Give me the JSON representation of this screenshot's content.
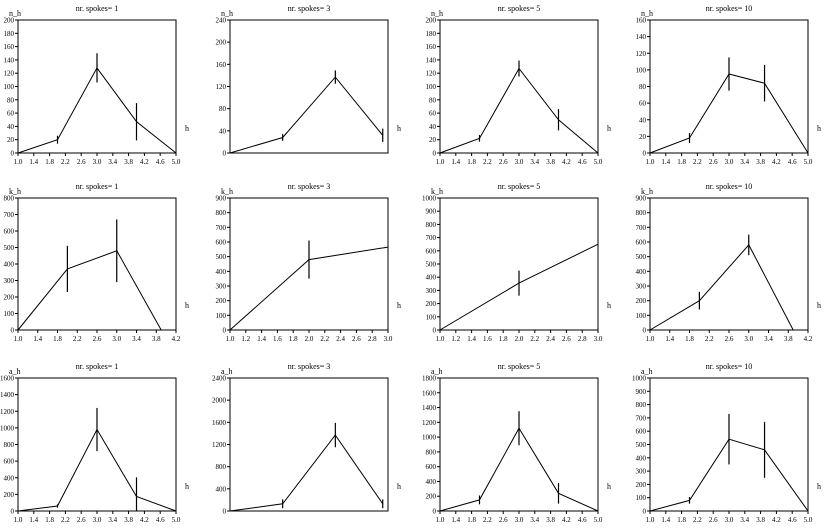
{
  "figure": {
    "background": "#ffffff",
    "line_color": "#000000"
  },
  "chart_data": [
    {
      "type": "line",
      "title": "nr. spokes= 1",
      "xlabel": "h",
      "ylabel": "n_h",
      "xlim": [
        1.0,
        5.0
      ],
      "ylim": [
        0,
        200
      ],
      "xticks": [
        "1.0",
        "1.4",
        "1.8",
        "2.2",
        "2.6",
        "3.0",
        "3.4",
        "3.8",
        "4.2",
        "4.6",
        "5.0"
      ],
      "yticks": [
        "0",
        "20",
        "40",
        "60",
        "80",
        "100",
        "120",
        "140",
        "160",
        "180",
        "200"
      ],
      "x": [
        1.0,
        2.0,
        3.0,
        4.0,
        5.0
      ],
      "y": [
        0,
        20,
        128,
        47,
        0
      ],
      "err": [
        0,
        6,
        22,
        28,
        0
      ]
    },
    {
      "type": "line",
      "title": "nr. spokes= 3",
      "xlabel": "h",
      "ylabel": "n_h",
      "xlim": [
        1.0,
        4.0
      ],
      "ylim": [
        0,
        240
      ],
      "xticks": [],
      "yticks": [
        "0",
        "40",
        "80",
        "120",
        "160",
        "200",
        "240"
      ],
      "x": [
        1.0,
        2.0,
        3.0,
        3.9
      ],
      "y": [
        0,
        28,
        137,
        32
      ],
      "err": [
        0,
        6,
        12,
        12
      ]
    },
    {
      "type": "line",
      "title": "nr. spokes= 5",
      "xlabel": "h",
      "ylabel": "n_h",
      "xlim": [
        1.0,
        5.0
      ],
      "ylim": [
        0,
        200
      ],
      "xticks": [
        "1.0",
        "1.4",
        "1.8",
        "2.2",
        "2.6",
        "3.0",
        "3.4",
        "3.8",
        "4.2",
        "4.6",
        "5.0"
      ],
      "yticks": [
        "0",
        "20",
        "40",
        "60",
        "80",
        "100",
        "120",
        "140",
        "160",
        "180",
        "200"
      ],
      "x": [
        1.0,
        2.0,
        3.0,
        4.0,
        5.0
      ],
      "y": [
        0,
        22,
        127,
        50,
        0
      ],
      "err": [
        0,
        5,
        12,
        16,
        0
      ]
    },
    {
      "type": "line",
      "title": "nr. spokes= 10",
      "xlabel": "h",
      "ylabel": "n_h",
      "xlim": [
        1.0,
        5.0
      ],
      "ylim": [
        0,
        160
      ],
      "xticks": [
        "1.0",
        "1.4",
        "1.8",
        "2.2",
        "2.6",
        "3.0",
        "3.4",
        "3.8",
        "4.2",
        "4.6",
        "5.0"
      ],
      "yticks": [
        "0",
        "20",
        "40",
        "60",
        "80",
        "100",
        "120",
        "140",
        "160"
      ],
      "x": [
        1.0,
        2.0,
        3.0,
        3.9,
        5.0
      ],
      "y": [
        0,
        18,
        95,
        84,
        0
      ],
      "err": [
        0,
        6,
        20,
        22,
        0
      ]
    },
    {
      "type": "line",
      "title": "nr. spokes= 1",
      "xlabel": "h",
      "ylabel": "k_h",
      "xlim": [
        1.0,
        4.2
      ],
      "ylim": [
        0,
        800
      ],
      "xticks": [
        "1.0",
        "1.4",
        "1.8",
        "2.2",
        "2.6",
        "3.0",
        "3.4",
        "3.8",
        "4.2"
      ],
      "yticks": [
        "0",
        "100",
        "200",
        "300",
        "400",
        "500",
        "600",
        "700",
        "800"
      ],
      "x": [
        1.0,
        2.0,
        3.0,
        3.9
      ],
      "y": [
        0,
        370,
        480,
        0
      ],
      "err": [
        0,
        140,
        190,
        0
      ]
    },
    {
      "type": "line",
      "title": "nr. spokes= 3",
      "xlabel": "h",
      "ylabel": "k_h",
      "xlim": [
        1.0,
        3.0
      ],
      "ylim": [
        0,
        900
      ],
      "xticks": [
        "1.0",
        "1.2",
        "1.4",
        "1.6",
        "1.8",
        "2.0",
        "2.2",
        "2.4",
        "2.6",
        "2.8",
        "3.0"
      ],
      "yticks": [
        "0",
        "100",
        "200",
        "300",
        "400",
        "500",
        "600",
        "700",
        "800",
        "900"
      ],
      "x": [
        1.0,
        2.0,
        3.0
      ],
      "y": [
        0,
        480,
        565
      ],
      "err": [
        0,
        130,
        0
      ]
    },
    {
      "type": "line",
      "title": "nr. spokes= 5",
      "xlabel": "h",
      "ylabel": "k_h",
      "xlim": [
        1.0,
        3.0
      ],
      "ylim": [
        0,
        1000
      ],
      "xticks": [
        "1.0",
        "1.2",
        "1.4",
        "1.6",
        "1.8",
        "2.0",
        "2.2",
        "2.4",
        "2.6",
        "2.8",
        "3.0"
      ],
      "yticks": [
        "0",
        "100",
        "200",
        "300",
        "400",
        "500",
        "600",
        "700",
        "800",
        "900",
        "1000"
      ],
      "x": [
        1.0,
        2.0,
        3.0
      ],
      "y": [
        0,
        355,
        650
      ],
      "err": [
        0,
        95,
        0
      ]
    },
    {
      "type": "line",
      "title": "nr. spokes= 10",
      "xlabel": "h",
      "ylabel": "k_h",
      "xlim": [
        1.0,
        4.2
      ],
      "ylim": [
        0,
        900
      ],
      "xticks": [
        "1.0",
        "1.4",
        "1.8",
        "2.2",
        "2.6",
        "3.0",
        "3.4",
        "3.8",
        "4.2"
      ],
      "yticks": [
        "0",
        "100",
        "200",
        "300",
        "400",
        "500",
        "600",
        "700",
        "800",
        "900"
      ],
      "x": [
        1.0,
        2.0,
        3.0,
        3.9
      ],
      "y": [
        0,
        200,
        580,
        0
      ],
      "err": [
        0,
        60,
        70,
        0
      ]
    },
    {
      "type": "line",
      "title": "nr. spokes= 1",
      "xlabel": "h",
      "ylabel": "a_h",
      "xlim": [
        1.0,
        5.0
      ],
      "ylim": [
        0,
        1600
      ],
      "xticks": [
        "1.0",
        "1.4",
        "1.8",
        "2.2",
        "2.6",
        "3.0",
        "3.4",
        "3.8",
        "4.2",
        "4.6",
        "5.0"
      ],
      "yticks": [
        "0",
        "200",
        "400",
        "600",
        "800",
        "1000",
        "1200",
        "1400",
        "1600"
      ],
      "x": [
        1.0,
        2.0,
        3.0,
        4.0,
        5.0
      ],
      "y": [
        0,
        60,
        980,
        175,
        0
      ],
      "err": [
        0,
        20,
        260,
        230,
        0
      ]
    },
    {
      "type": "line",
      "title": "nr. spokes= 3",
      "xlabel": "h",
      "ylabel": "a_h",
      "xlim": [
        1.0,
        4.0
      ],
      "ylim": [
        0,
        2400
      ],
      "xticks": [],
      "yticks": [
        "0",
        "400",
        "800",
        "1200",
        "1600",
        "2000",
        "2400"
      ],
      "x": [
        1.0,
        2.0,
        3.0,
        3.9
      ],
      "y": [
        0,
        130,
        1370,
        130
      ],
      "err": [
        0,
        80,
        220,
        80
      ]
    },
    {
      "type": "line",
      "title": "nr. spokes= 5",
      "xlabel": "h",
      "ylabel": "a_h",
      "xlim": [
        1.0,
        5.0
      ],
      "ylim": [
        0,
        1800
      ],
      "xticks": [
        "1.0",
        "1.4",
        "1.8",
        "2.2",
        "2.6",
        "3.0",
        "3.4",
        "3.8",
        "4.2",
        "4.6",
        "5.0"
      ],
      "yticks": [
        "0",
        "200",
        "400",
        "600",
        "800",
        "1000",
        "1200",
        "1400",
        "1600",
        "1800"
      ],
      "x": [
        1.0,
        2.0,
        3.0,
        4.0,
        5.0
      ],
      "y": [
        0,
        150,
        1120,
        240,
        0
      ],
      "err": [
        0,
        60,
        230,
        140,
        0
      ]
    },
    {
      "type": "line",
      "title": "nr. spokes= 10",
      "xlabel": "h",
      "ylabel": "a_h",
      "xlim": [
        1.0,
        5.0
      ],
      "ylim": [
        0,
        1000
      ],
      "xticks": [
        "1.0",
        "1.4",
        "1.8",
        "2.2",
        "2.6",
        "3.0",
        "3.4",
        "3.8",
        "4.2",
        "4.6",
        "5.0"
      ],
      "yticks": [
        "0",
        "100",
        "200",
        "300",
        "400",
        "500",
        "600",
        "700",
        "800",
        "900",
        "1000"
      ],
      "x": [
        1.0,
        2.0,
        3.0,
        3.9,
        5.0
      ],
      "y": [
        0,
        80,
        540,
        460,
        0
      ],
      "err": [
        0,
        25,
        190,
        210,
        0
      ]
    }
  ]
}
